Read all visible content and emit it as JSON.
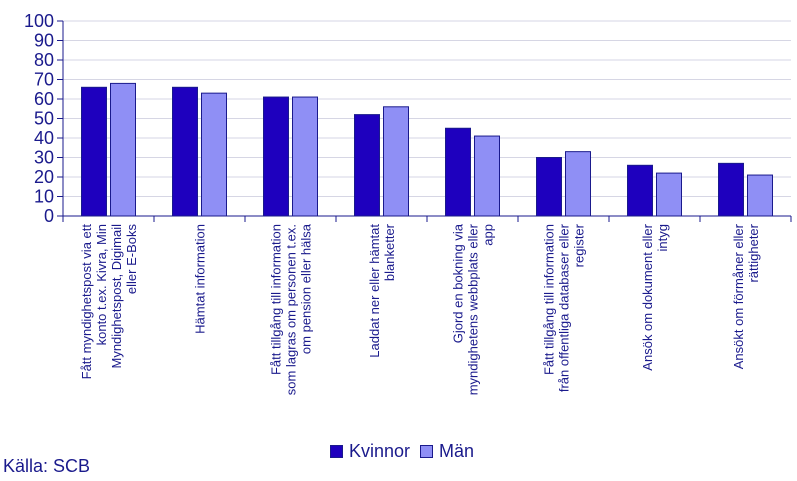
{
  "chart_data": {
    "type": "bar",
    "title": "",
    "xlabel": "",
    "ylabel": "",
    "ylim": [
      0,
      100
    ],
    "yticks": [
      0,
      10,
      20,
      30,
      40,
      50,
      60,
      70,
      80,
      90,
      100
    ],
    "grid": true,
    "categories": [
      [
        "Fått myndighetspost via ett",
        "konto t.ex. Kivra, Min",
        "Myndighetspost, Digimail",
        "eller E-Boks"
      ],
      [
        "Hämtat information"
      ],
      [
        "Fått tillgång till information",
        "som lagras om personen t.ex.",
        "om pension eller hälsa"
      ],
      [
        "Laddat ner eller hämtat",
        "blanketter"
      ],
      [
        "Gjord en bokning via",
        "myndighetens webbplats eller",
        "app"
      ],
      [
        "Fått tillgång till information",
        "från offentliga databaser eller",
        "register"
      ],
      [
        "Ansök om dokument eller",
        "intyg"
      ],
      [
        "Ansökt om förmåner eller",
        "rättigheter"
      ]
    ],
    "series": [
      {
        "name": "Kvinnor",
        "color": "#1e00be",
        "values": [
          66,
          66,
          61,
          52,
          45,
          30,
          26,
          27
        ]
      },
      {
        "name": "Män",
        "color": "#8f8ff5",
        "values": [
          68,
          63,
          61,
          56,
          41,
          33,
          22,
          21
        ]
      }
    ]
  },
  "legend": {
    "items": [
      {
        "label": "Kvinnor",
        "color": "#1e00be"
      },
      {
        "label": "Män",
        "color": "#8f8ff5"
      }
    ]
  },
  "source": "Källa: SCB"
}
